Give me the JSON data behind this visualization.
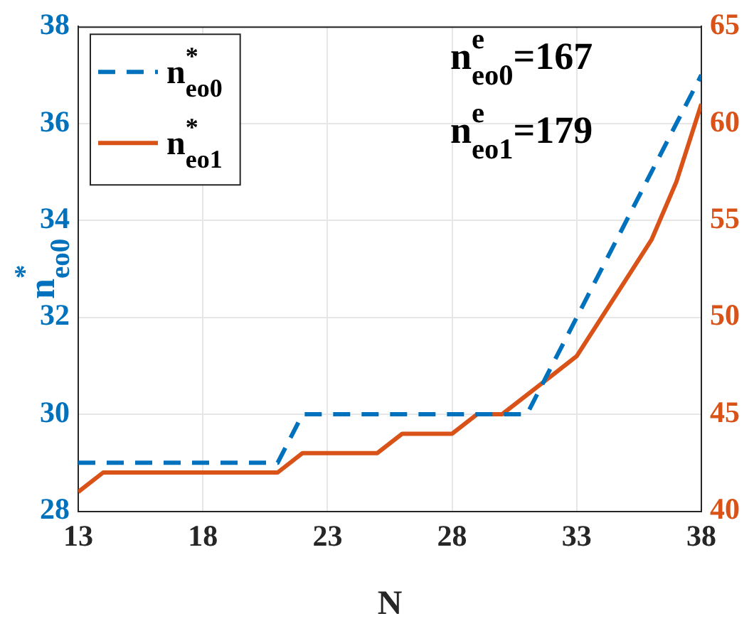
{
  "chart_data": {
    "type": "line",
    "xlabel": "N",
    "ylabel": "n$^{*}$$_{eo0}$",
    "x": [
      13,
      14,
      15,
      16,
      17,
      18,
      19,
      20,
      21,
      22,
      23,
      24,
      25,
      26,
      27,
      28,
      29,
      30,
      31,
      32,
      33,
      34,
      35,
      36,
      37,
      38
    ],
    "xlim": [
      13,
      38
    ],
    "xticks": [
      13,
      18,
      23,
      28,
      33,
      38
    ],
    "ylim": [
      28,
      38
    ],
    "yticks": [
      28,
      30,
      32,
      34,
      36,
      38
    ],
    "y2lim": [
      40,
      65
    ],
    "y2ticks": [
      40,
      45,
      50,
      55,
      60,
      65
    ],
    "grid": true,
    "legend": "top left",
    "series": [
      {
        "name": "n$^{*}$$_{eo0}$",
        "color": "#0072bd",
        "line_style": "dashed",
        "values": [
          29,
          29,
          29,
          29,
          29,
          29,
          29,
          29,
          29,
          30,
          30,
          30,
          30,
          30,
          30,
          30,
          30,
          30,
          30,
          31,
          32,
          33,
          34,
          35,
          36,
          37
        ]
      },
      {
        "name": "n$^{*}$$_{eo1}$",
        "color": "#d95319",
        "line_style": "solid",
        "axis": "y2",
        "values": [
          41,
          42,
          42,
          42,
          42,
          42,
          42,
          42,
          42,
          43,
          43,
          43,
          43,
          44,
          44,
          44,
          45,
          45,
          46,
          47,
          48,
          50,
          52,
          54,
          57,
          61
        ]
      }
    ],
    "annotations": [
      "n$^{e}$$_{eo0}$=167",
      "n$^{e}$$_{eo1}$=179"
    ]
  }
}
